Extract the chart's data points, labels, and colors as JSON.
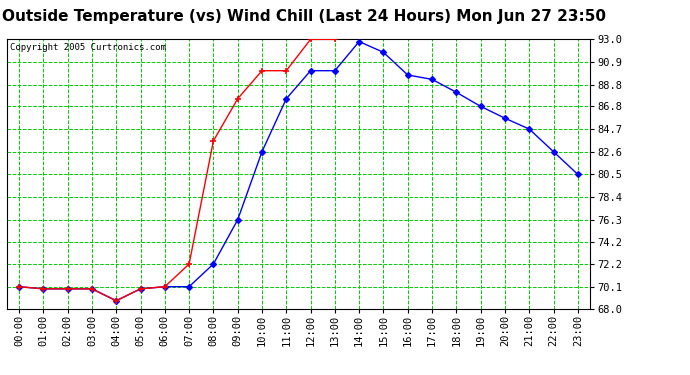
{
  "title": "Outside Temperature (vs) Wind Chill (Last 24 Hours) Mon Jun 27 23:50",
  "copyright": "Copyright 2005 Curtronics.com",
  "x_labels": [
    "00:00",
    "01:00",
    "02:00",
    "03:00",
    "04:00",
    "05:00",
    "06:00",
    "07:00",
    "08:00",
    "09:00",
    "10:00",
    "11:00",
    "12:00",
    "13:00",
    "14:00",
    "15:00",
    "16:00",
    "17:00",
    "18:00",
    "19:00",
    "20:00",
    "21:00",
    "22:00",
    "23:00"
  ],
  "ylim": [
    68.0,
    93.0
  ],
  "yticks": [
    68.0,
    70.1,
    72.2,
    74.2,
    76.3,
    78.4,
    80.5,
    82.6,
    84.7,
    86.8,
    88.8,
    90.9,
    93.0
  ],
  "bg_color": "#ffffff",
  "plot_bg_color": "#ffffff",
  "grid_color": "#00cc00",
  "border_color": "#000000",
  "blue_line": {
    "color": "#0000ff",
    "marker_size": 3,
    "values": [
      70.1,
      69.9,
      69.9,
      69.9,
      68.8,
      69.9,
      70.1,
      70.1,
      72.2,
      76.3,
      82.6,
      87.5,
      90.1,
      90.1,
      92.8,
      91.8,
      89.7,
      89.3,
      88.1,
      86.8,
      85.7,
      84.7,
      82.6,
      80.5
    ]
  },
  "red_line": {
    "color": "#ff0000",
    "marker_size": 5,
    "values": [
      70.1,
      69.9,
      69.9,
      69.9,
      68.8,
      69.9,
      70.1,
      72.2,
      83.6,
      87.5,
      90.1,
      90.1,
      93.0,
      93.0,
      null,
      null,
      null,
      null,
      null,
      null,
      null,
      null,
      null,
      null
    ]
  },
  "title_fontsize": 11,
  "tick_fontsize": 7.5,
  "copyright_fontsize": 6.5
}
